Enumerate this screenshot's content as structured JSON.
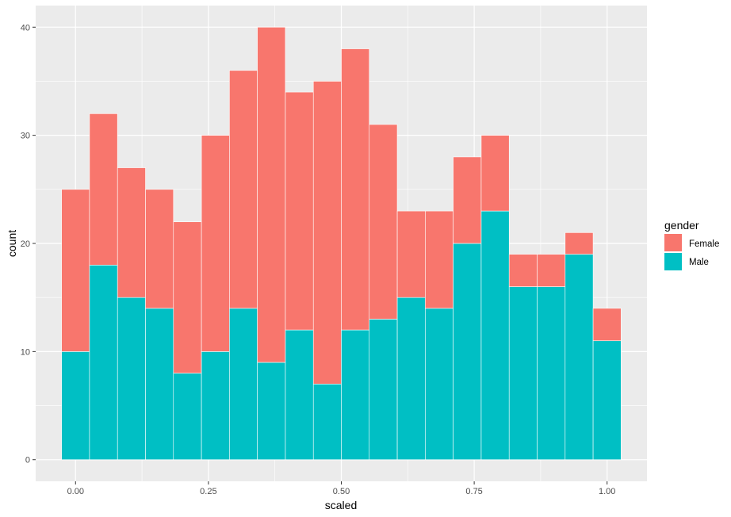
{
  "chart_data": {
    "type": "bar",
    "stacked": true,
    "xlabel": "scaled",
    "ylabel": "count",
    "xlim": [
      -0.075,
      1.075
    ],
    "ylim": [
      -2,
      42
    ],
    "x_ticks": [
      {
        "value": 0.0,
        "label": "0.00"
      },
      {
        "value": 0.25,
        "label": "0.25"
      },
      {
        "value": 0.5,
        "label": "0.50"
      },
      {
        "value": 0.75,
        "label": "0.75"
      },
      {
        "value": 1.0,
        "label": "1.00"
      }
    ],
    "y_ticks": [
      {
        "value": 0,
        "label": "0"
      },
      {
        "value": 10,
        "label": "10"
      },
      {
        "value": 20,
        "label": "20"
      },
      {
        "value": 30,
        "label": "30"
      },
      {
        "value": 40,
        "label": "40"
      }
    ],
    "bin_width": 0.0526,
    "bin_centers": [
      0.0,
      0.0526,
      0.1053,
      0.1579,
      0.2105,
      0.2632,
      0.3158,
      0.3684,
      0.4211,
      0.4737,
      0.5263,
      0.5789,
      0.6316,
      0.6842,
      0.7368,
      0.7895,
      0.8421,
      0.8947,
      0.9474,
      1.0
    ],
    "series": [
      {
        "name": "Male",
        "color": "#00BFC4",
        "values": [
          10,
          18,
          15,
          14,
          8,
          10,
          14,
          9,
          12,
          7,
          12,
          13,
          15,
          14,
          20,
          23,
          16,
          16,
          19,
          11
        ]
      },
      {
        "name": "Female",
        "color": "#F8766D",
        "values": [
          15,
          14,
          12,
          11,
          14,
          20,
          22,
          31,
          22,
          28,
          26,
          18,
          8,
          9,
          8,
          7,
          3,
          3,
          2,
          3
        ]
      }
    ],
    "legend": {
      "title": "gender",
      "position": "right",
      "entries": [
        {
          "label": "Female",
          "color": "#F8766D"
        },
        {
          "label": "Male",
          "color": "#00BFC4"
        }
      ]
    },
    "grid": true,
    "panel_background": "#EBEBEB",
    "grid_color": "#FFFFFF",
    "bar_outline": "#FFFFFF"
  }
}
